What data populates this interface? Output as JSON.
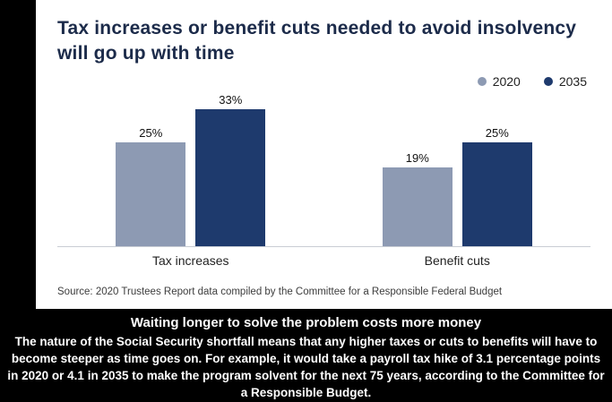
{
  "card": {
    "title": "Tax increases or benefit cuts needed to avoid insolvency will go up with time",
    "source": "Source: 2020 Trustees Report data compiled by the Committee for a Responsible Federal Budget"
  },
  "chart_data": {
    "type": "bar",
    "categories": [
      "Tax increases",
      "Benefit cuts"
    ],
    "series": [
      {
        "name": "2020",
        "color": "#8d9ab3",
        "values": [
          25,
          19
        ]
      },
      {
        "name": "2035",
        "color": "#1e3a6d",
        "values": [
          33,
          25
        ]
      }
    ],
    "value_suffix": "%",
    "ylim": [
      0,
      37
    ],
    "grid": false,
    "legend_position": "top-right"
  },
  "caption": {
    "title": "Waiting longer to solve the problem costs more money",
    "body": "The nature of the Social Security shortfall means that any higher taxes or cuts to benefits will have to become steeper as time goes on. For example, it would take a payroll tax hike of 3.1 percentage points in 2020 or 4.1 in 2035 to make the program solvent for the next 75 years, according to the Committee for a Responsible Budget."
  },
  "colors": {
    "background": "#000000",
    "card": "#ffffff",
    "title_text": "#1c2b4a",
    "axis_line": "#c9cdd4",
    "caption_text": "#ffffff"
  }
}
